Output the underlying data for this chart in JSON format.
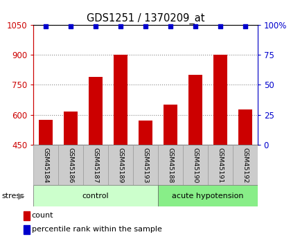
{
  "title": "GDS1251 / 1370209_at",
  "samples": [
    "GSM45184",
    "GSM45186",
    "GSM45187",
    "GSM45189",
    "GSM45193",
    "GSM45188",
    "GSM45190",
    "GSM45191",
    "GSM45192"
  ],
  "counts": [
    575,
    615,
    790,
    900,
    570,
    650,
    800,
    900,
    625
  ],
  "percentiles": [
    99,
    99,
    99,
    99,
    99,
    99,
    99,
    99,
    99
  ],
  "groups": [
    {
      "label": "control",
      "start": 0,
      "end": 5,
      "color": "#ccffcc"
    },
    {
      "label": "acute hypotension",
      "start": 5,
      "end": 9,
      "color": "#88ee88"
    }
  ],
  "bar_color": "#cc0000",
  "dot_color": "#0000cc",
  "left_axis_color": "#cc0000",
  "right_axis_color": "#0000cc",
  "ylim_left": [
    450,
    1050
  ],
  "ylim_right": [
    0,
    100
  ],
  "yticks_left": [
    450,
    600,
    750,
    900,
    1050
  ],
  "yticks_right": [
    0,
    25,
    50,
    75,
    100
  ],
  "stress_label": "stress",
  "legend_count": "count",
  "legend_percentile": "percentile rank within the sample",
  "background_color": "#ffffff",
  "sample_box_color": "#cccccc"
}
